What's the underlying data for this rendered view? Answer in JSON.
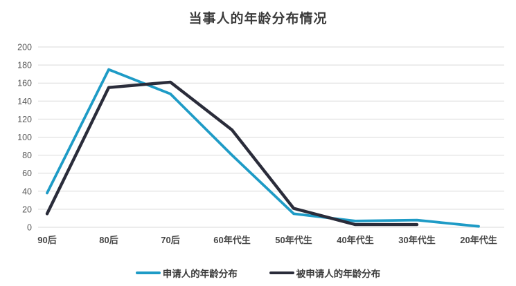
{
  "chart_data": {
    "type": "line",
    "title": "当事人的年龄分布情况",
    "categories": [
      "90后",
      "80后",
      "70后",
      "60年代生",
      "50年代生",
      "40年代生",
      "30年代生",
      "20年代生"
    ],
    "series": [
      {
        "name": "申请人的年龄分布",
        "color": "#1E9BC6",
        "values": [
          38,
          175,
          148,
          80,
          15,
          7,
          8,
          1
        ]
      },
      {
        "name": "被申请人的年龄分布",
        "color": "#2A2C3A",
        "values": [
          15,
          155,
          161,
          108,
          21,
          3,
          3,
          null
        ]
      }
    ],
    "xlabel": "",
    "ylabel": "",
    "ylim": [
      0,
      200
    ],
    "yticks": [
      0,
      20,
      40,
      60,
      80,
      100,
      120,
      140,
      160,
      180,
      200
    ],
    "grid": "horizontal",
    "gridline_color": "#D9D9D9",
    "legend_position": "bottom"
  }
}
